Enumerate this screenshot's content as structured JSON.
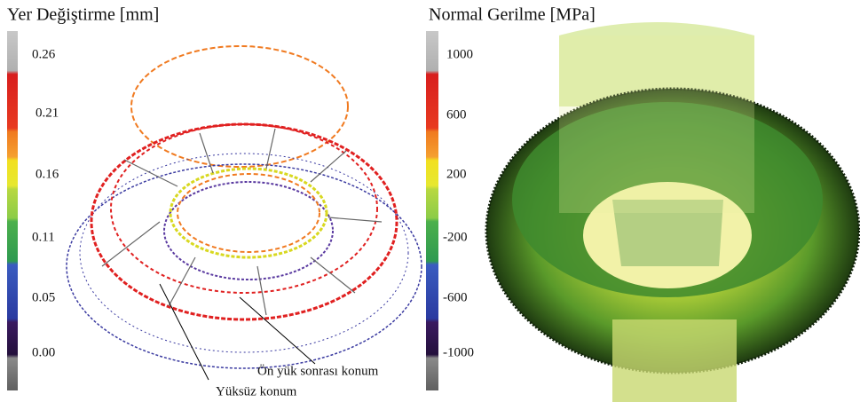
{
  "left_panel": {
    "title": "Yer Değiştirme [mm]",
    "colorbar_labels": [
      "0.26",
      "0.21",
      "0.16",
      "0.11",
      "0.05",
      "0.00"
    ],
    "annotations": [
      "Ön yük sonrası konum",
      "Yüksüz konum"
    ]
  },
  "right_panel": {
    "title": "Normal Gerilme [MPa]",
    "colorbar_labels": [
      "1000",
      "600",
      "200",
      "-200",
      "-600",
      "-1000"
    ]
  }
}
